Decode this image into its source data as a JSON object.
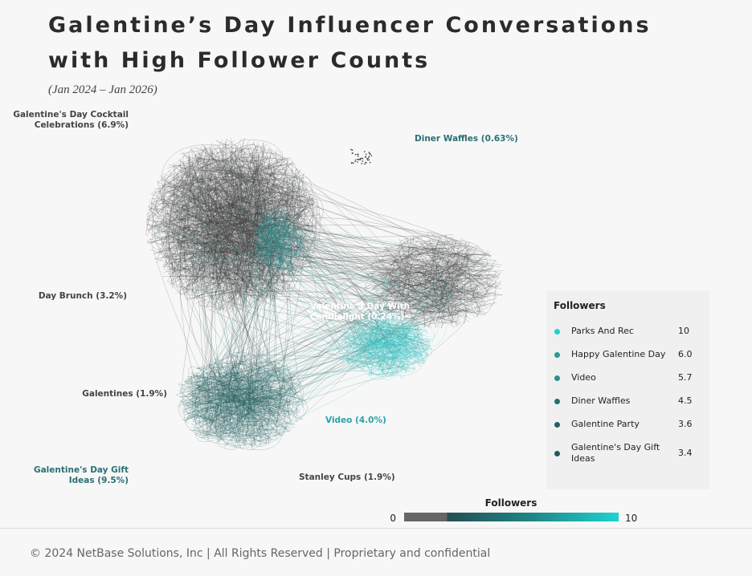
{
  "chart_data": {
    "type": "network",
    "title": [
      "Galentine’s Day Influencer Conversations",
      "with High Follower Counts"
    ],
    "subtitle": "(Jan 2024 – Jan 2026)",
    "cluster_labels": [
      {
        "text": [
          "Galentine's Day Cocktail",
          "Celebrations (6.9%)"
        ],
        "color": "#444444"
      },
      {
        "text": [
          "Diner Waffles  (0.63%)"
        ],
        "color": "#2a6f73"
      },
      {
        "text": [
          "Day Brunch (3.2%)"
        ],
        "color": "#444444"
      },
      {
        "text": [
          "Valentine'S Day With",
          "Candlelight (0.24%)"
        ],
        "color": "#ffffff"
      },
      {
        "text": [
          "Galentines (1.9%)"
        ],
        "color": "#444444"
      },
      {
        "text": [
          "Video (4.0%)"
        ],
        "color": "#2aa3a6"
      },
      {
        "text": [
          "Galentine's Day Gift",
          "Ideas (9.5%)"
        ],
        "color": "#2a6f73"
      },
      {
        "text": [
          "Stanley Cups (1.9%)"
        ],
        "color": "#444444"
      }
    ],
    "legend": {
      "title": "Followers",
      "rows": [
        {
          "name": "Parks And Rec",
          "value": "10",
          "color": "#1fd0cf"
        },
        {
          "name": "Happy Galentine Day",
          "value": "6.0",
          "color": "#2a9a9a"
        },
        {
          "name": "Video",
          "value": "5.7",
          "color": "#2a9090"
        },
        {
          "name": "Diner Waffles",
          "value": "4.5",
          "color": "#236f6f"
        },
        {
          "name": "Galentine Party",
          "value": "3.6",
          "color": "#225f60"
        },
        {
          "name": "Galentine's Day Gift Ideas",
          "value": "3.4",
          "color": "#225a5c"
        }
      ]
    },
    "colorbar": {
      "title": "Followers",
      "lim": [
        0,
        10
      ],
      "ticks": [
        0,
        10
      ]
    },
    "footer": "© 2024 NetBase Solutions, Inc | All Rights Reserved | Proprietary and confidential"
  }
}
